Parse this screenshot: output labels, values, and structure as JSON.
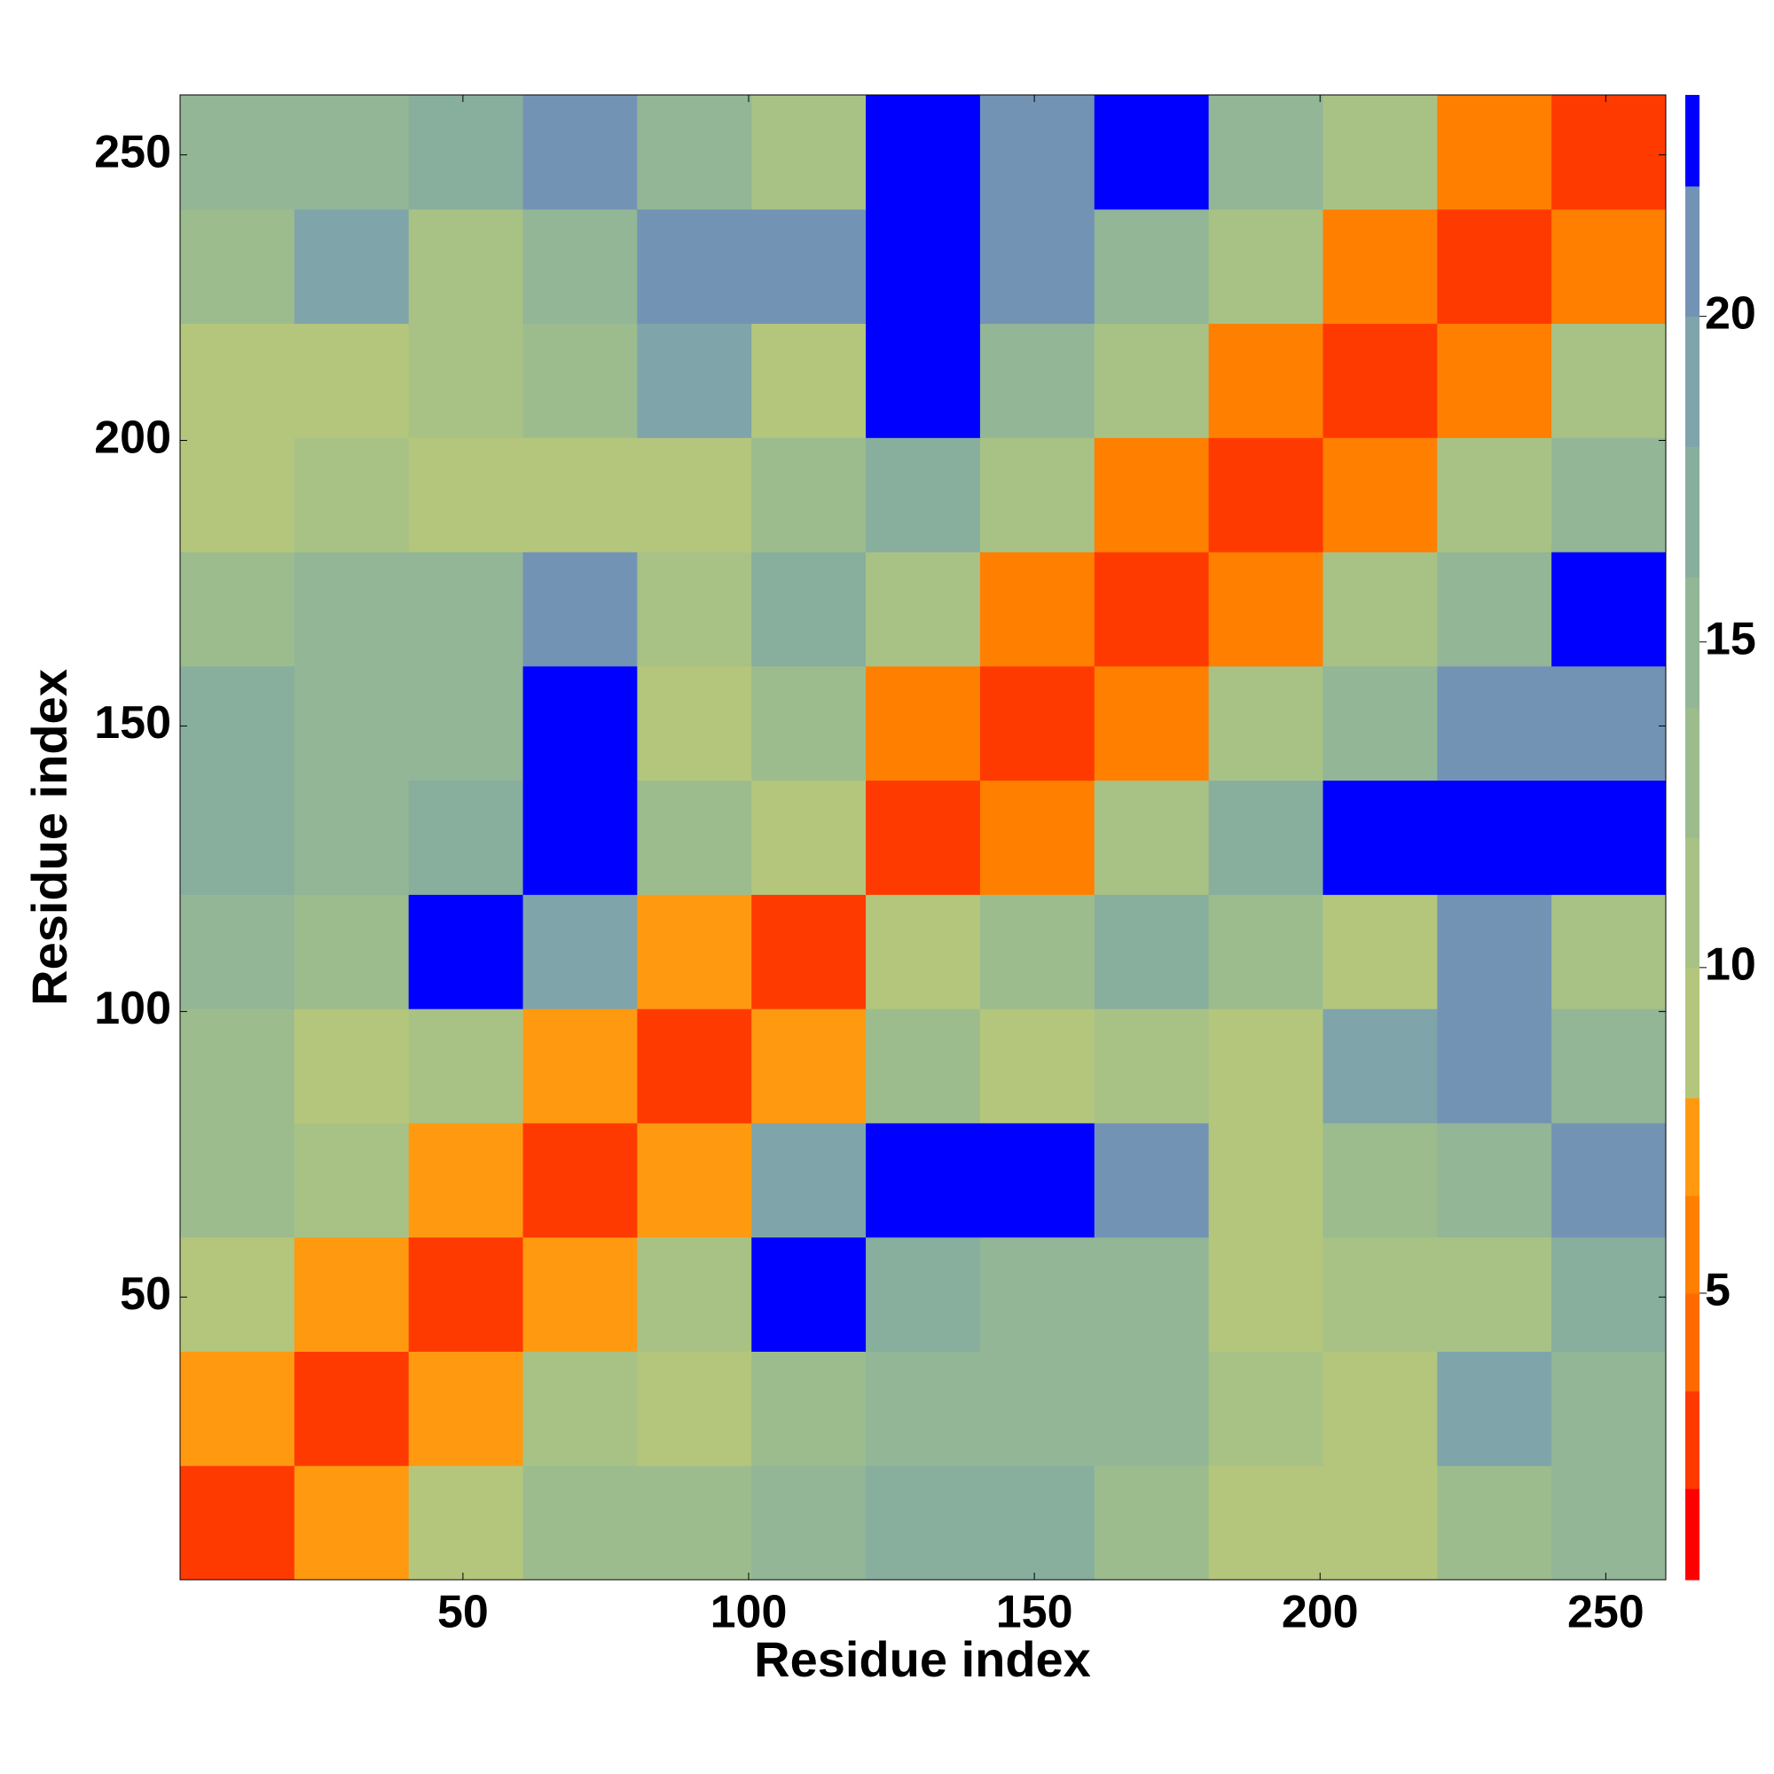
{
  "chart_data": {
    "type": "heatmap",
    "x_label": "Residue index",
    "y_label": "Residue index",
    "xbins": [
      0.5,
      20.5,
      40.5,
      60.5,
      80.5,
      100.5,
      120.5,
      140.5,
      160.5,
      180.5,
      200.5,
      220.5,
      240.5,
      260.5
    ],
    "ybins": [
      0.5,
      20.5,
      40.5,
      60.5,
      80.5,
      100.5,
      120.5,
      140.5,
      160.5,
      180.5,
      200.5,
      220.5,
      240.5,
      260.5
    ],
    "z": [
      [
        2,
        7,
        9,
        12,
        13,
        14,
        17,
        17,
        13,
        8,
        8,
        12,
        15
      ],
      [
        7,
        2,
        7,
        11,
        9,
        12,
        14,
        14,
        15,
        11,
        9,
        19,
        14
      ],
      [
        9,
        7,
        2,
        7,
        10,
        23,
        16,
        14,
        14,
        8,
        11,
        10,
        17
      ],
      [
        12,
        11,
        7,
        2,
        7,
        19,
        23,
        23,
        20,
        9,
        12,
        15,
        21
      ],
      [
        13,
        9,
        10,
        7,
        2,
        7,
        12,
        9,
        11,
        8,
        18,
        20,
        14
      ],
      [
        14,
        12,
        23,
        19,
        7,
        2,
        8,
        12,
        17,
        12,
        9,
        21,
        11
      ],
      [
        17,
        14,
        16,
        23,
        12,
        8,
        2,
        6,
        10,
        16,
        23,
        23,
        23
      ],
      [
        17,
        14,
        14,
        23,
        9,
        12,
        6,
        2,
        6,
        11,
        14,
        20,
        21
      ],
      [
        13,
        15,
        14,
        20,
        11,
        17,
        10,
        6,
        2,
        6,
        11,
        15,
        23
      ],
      [
        8,
        11,
        8,
        9,
        8,
        12,
        16,
        11,
        6,
        2,
        6,
        10,
        15
      ],
      [
        8,
        9,
        11,
        12,
        18,
        9,
        23,
        14,
        11,
        6,
        2,
        6,
        10
      ],
      [
        12,
        19,
        10,
        15,
        20,
        21,
        23,
        20,
        15,
        10,
        6,
        2,
        6
      ],
      [
        15,
        14,
        17,
        21,
        14,
        11,
        23,
        21,
        23,
        15,
        10,
        6,
        2
      ]
    ],
    "xlim": [
      0.5,
      260.5
    ],
    "ylim": [
      0.5,
      260.5
    ],
    "xticks": [
      50,
      100,
      150,
      200,
      250
    ],
    "yticks": [
      50,
      100,
      150,
      200,
      250
    ],
    "clim": [
      0.6,
      23.4
    ],
    "cticks": [
      5,
      10,
      15,
      20
    ],
    "color_levels": [
      0.6,
      2,
      3.5,
      5,
      6.5,
      8,
      10,
      12,
      14,
      16,
      18,
      20,
      22,
      23.4
    ],
    "colors": [
      "#ff0000",
      "#ff3a00",
      "#ff6a00",
      "#ff7f00",
      "#ff9a10",
      "#b4c67c",
      "#a8c286",
      "#9cbc8e",
      "#92b696",
      "#88ae9e",
      "#7fa4aa",
      "#7393b4",
      "#0000ff"
    ],
    "grid": false
  }
}
